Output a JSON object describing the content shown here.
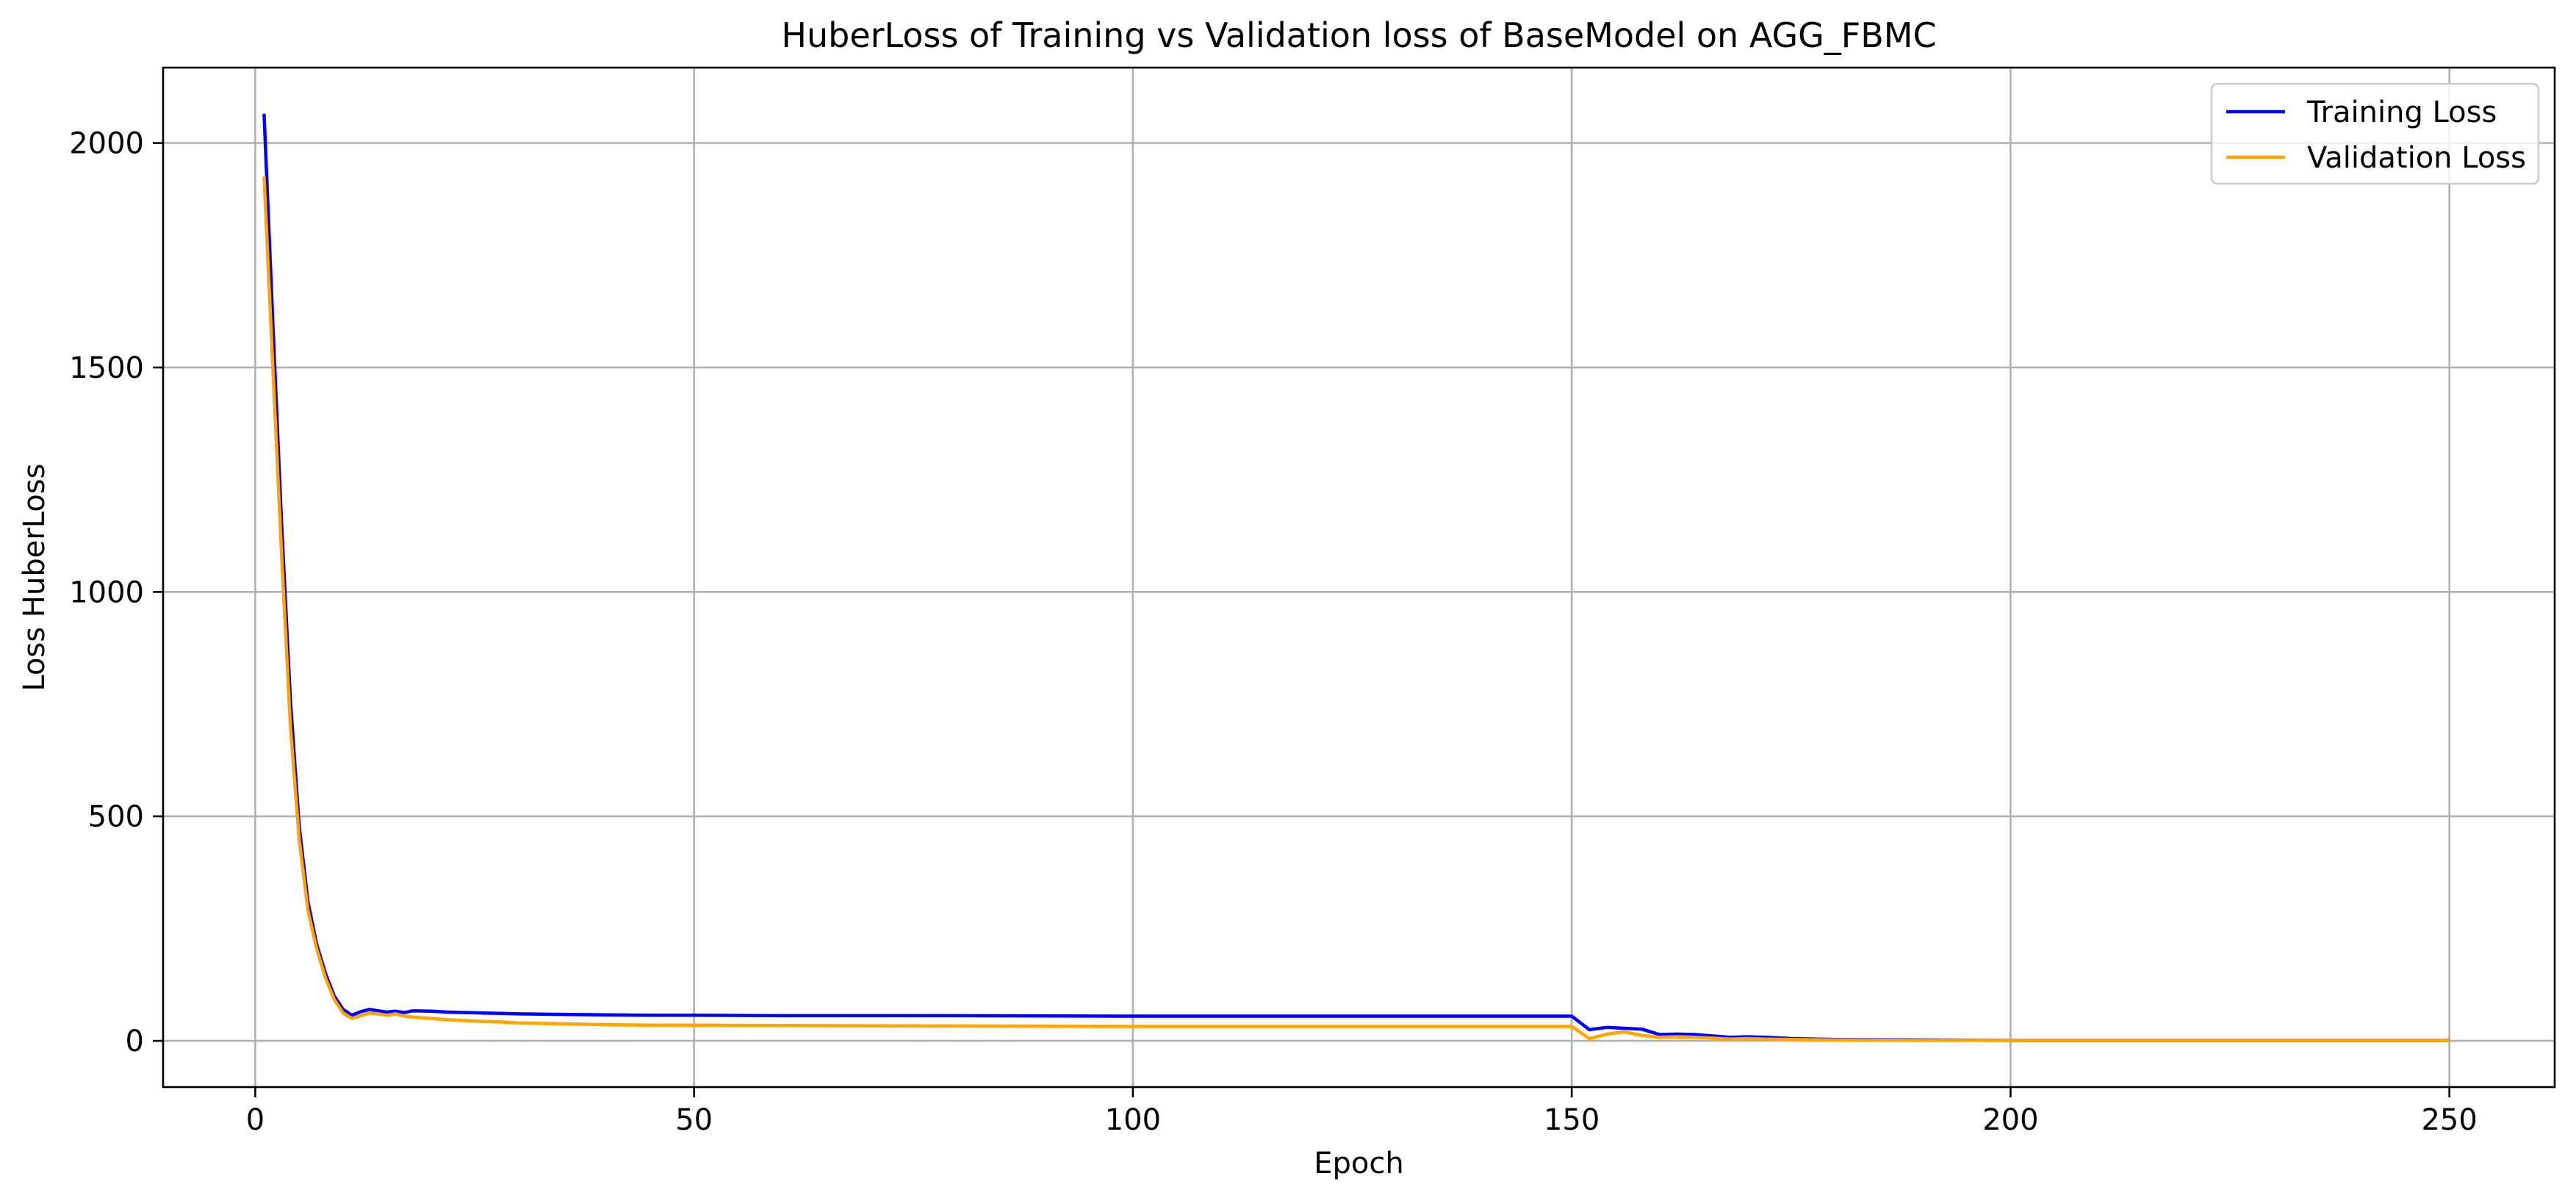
{
  "chart_data": {
    "type": "line",
    "title": "HuberLoss of Training vs Validation loss of BaseModel on AGG_FBMC",
    "xlabel": "Epoch",
    "ylabel": "Loss HuberLoss",
    "xlim": [
      -10.5,
      262
    ],
    "ylim": [
      -103,
      2168
    ],
    "xticks": [
      0,
      50,
      100,
      150,
      200,
      250
    ],
    "yticks": [
      0,
      500,
      1000,
      1500,
      2000
    ],
    "grid": true,
    "legend_position": "top-right",
    "series": [
      {
        "name": "Training Loss",
        "color": "#0000ff",
        "points": [
          [
            1,
            2065
          ],
          [
            2,
            1600
          ],
          [
            3,
            1150
          ],
          [
            4,
            760
          ],
          [
            5,
            480
          ],
          [
            6,
            310
          ],
          [
            7,
            215
          ],
          [
            8,
            150
          ],
          [
            9,
            100
          ],
          [
            10,
            70
          ],
          [
            11,
            57
          ],
          [
            12,
            65
          ],
          [
            13,
            70
          ],
          [
            14,
            67
          ],
          [
            15,
            64
          ],
          [
            16,
            66
          ],
          [
            17,
            63
          ],
          [
            18,
            67
          ],
          [
            20,
            66
          ],
          [
            22,
            64
          ],
          [
            24,
            63
          ],
          [
            26,
            62
          ],
          [
            28,
            61
          ],
          [
            30,
            60
          ],
          [
            35,
            59
          ],
          [
            40,
            58
          ],
          [
            45,
            57
          ],
          [
            50,
            57
          ],
          [
            60,
            56
          ],
          [
            80,
            56
          ],
          [
            100,
            55
          ],
          [
            120,
            55
          ],
          [
            140,
            55
          ],
          [
            150,
            55
          ],
          [
            152,
            25
          ],
          [
            154,
            30
          ],
          [
            156,
            28
          ],
          [
            158,
            26
          ],
          [
            160,
            14
          ],
          [
            162,
            15
          ],
          [
            164,
            14
          ],
          [
            166,
            11
          ],
          [
            168,
            8
          ],
          [
            170,
            9
          ],
          [
            172,
            8
          ],
          [
            175,
            5
          ],
          [
            180,
            3
          ],
          [
            190,
            2
          ],
          [
            200,
            1
          ],
          [
            225,
            1
          ],
          [
            250,
            1
          ]
        ]
      },
      {
        "name": "Validation Loss",
        "color": "#ffa500",
        "points": [
          [
            1,
            1925
          ],
          [
            2,
            1500
          ],
          [
            3,
            1080
          ],
          [
            4,
            700
          ],
          [
            5,
            450
          ],
          [
            6,
            290
          ],
          [
            7,
            205
          ],
          [
            8,
            140
          ],
          [
            9,
            92
          ],
          [
            10,
            62
          ],
          [
            11,
            50
          ],
          [
            12,
            56
          ],
          [
            13,
            62
          ],
          [
            14,
            60
          ],
          [
            15,
            57
          ],
          [
            16,
            60
          ],
          [
            17,
            55
          ],
          [
            18,
            53
          ],
          [
            20,
            50
          ],
          [
            22,
            47
          ],
          [
            24,
            45
          ],
          [
            26,
            43
          ],
          [
            28,
            42
          ],
          [
            30,
            40
          ],
          [
            35,
            38
          ],
          [
            40,
            36
          ],
          [
            45,
            35
          ],
          [
            50,
            35
          ],
          [
            60,
            34
          ],
          [
            80,
            33
          ],
          [
            100,
            32
          ],
          [
            120,
            32
          ],
          [
            140,
            32
          ],
          [
            150,
            32
          ],
          [
            152,
            5
          ],
          [
            154,
            15
          ],
          [
            156,
            20
          ],
          [
            158,
            12
          ],
          [
            160,
            8
          ],
          [
            162,
            9
          ],
          [
            164,
            8
          ],
          [
            166,
            6
          ],
          [
            168,
            4
          ],
          [
            170,
            5
          ],
          [
            172,
            4
          ],
          [
            175,
            3
          ],
          [
            180,
            2
          ],
          [
            190,
            1
          ],
          [
            200,
            1
          ],
          [
            225,
            1
          ],
          [
            250,
            1
          ]
        ]
      }
    ]
  }
}
